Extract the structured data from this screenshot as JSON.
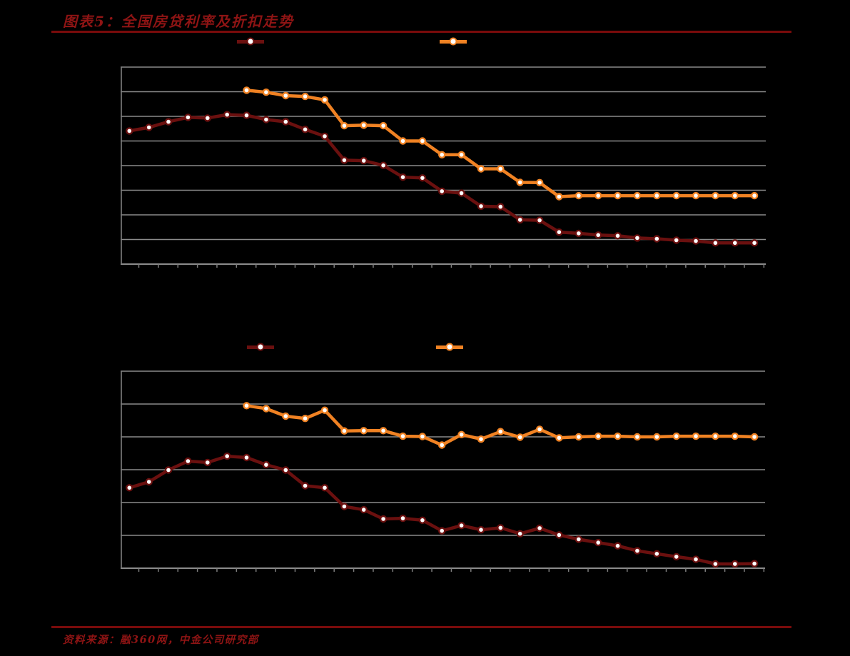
{
  "header": {
    "title": "图表5：全国房贷利率及折扣走势"
  },
  "footer": {
    "source": "资料来源：融360网，中金公司研究部"
  },
  "colors": {
    "accent_red": "#8E1414",
    "rule_red": "#7A0B0B",
    "series_dark_red": "#6B100F",
    "series_orange": "#F08223",
    "gridline_gray": "#8B8B8B",
    "axis_gray": "#7F7F7F",
    "marker_fill": "#FFFFFF",
    "background": "#000000"
  },
  "chart_data": [
    {
      "type": "line",
      "title": "",
      "xlabel": "",
      "ylabel": "",
      "x_count": 33,
      "ylim": [
        0,
        8
      ],
      "y_units": "gridline units (axis tick labels rendered black-on-black, not legible in source image)",
      "axis_labels_visible": false,
      "grid": true,
      "legend_position": "top",
      "series": [
        {
          "name": "dark-red-line-with-markers",
          "color_key": "series_dark_red",
          "start_index": 0,
          "values": [
            5.41,
            5.55,
            5.78,
            5.96,
            5.93,
            6.07,
            6.04,
            5.87,
            5.78,
            5.47,
            5.19,
            4.22,
            4.2,
            4.01,
            3.53,
            3.5,
            2.96,
            2.88,
            2.35,
            2.33,
            1.8,
            1.78,
            1.3,
            1.25,
            1.18,
            1.15,
            1.06,
            1.03,
            0.97,
            0.94,
            0.86,
            0.86,
            0.86
          ]
        },
        {
          "name": "orange-line-with-markers",
          "color_key": "series_orange",
          "start_index": 6,
          "values": [
            7.06,
            6.98,
            6.84,
            6.81,
            6.67,
            5.62,
            5.64,
            5.62,
            5.0,
            5.0,
            4.44,
            4.44,
            3.87,
            3.87,
            3.32,
            3.31,
            2.74,
            2.78,
            2.78,
            2.78,
            2.78,
            2.78,
            2.78,
            2.78,
            2.78,
            2.78,
            2.78
          ]
        }
      ]
    },
    {
      "type": "line",
      "title": "",
      "xlabel": "",
      "ylabel": "",
      "x_count": 33,
      "ylim": [
        0,
        6
      ],
      "y_units": "gridline units (axis tick labels rendered black-on-black, not legible in source image)",
      "axis_labels_visible": false,
      "grid": true,
      "legend_position": "top",
      "series": [
        {
          "name": "dark-red-line-with-markers",
          "color_key": "series_dark_red",
          "start_index": 0,
          "values": [
            2.45,
            2.63,
            2.99,
            3.26,
            3.22,
            3.41,
            3.37,
            3.15,
            2.99,
            2.51,
            2.45,
            1.88,
            1.78,
            1.5,
            1.52,
            1.46,
            1.14,
            1.3,
            1.17,
            1.23,
            1.05,
            1.22,
            1.01,
            0.88,
            0.78,
            0.68,
            0.53,
            0.44,
            0.35,
            0.27,
            0.13,
            0.13,
            0.14
          ]
        },
        {
          "name": "orange-line-with-markers",
          "color_key": "series_orange",
          "start_index": 6,
          "values": [
            4.95,
            4.86,
            4.63,
            4.56,
            4.81,
            4.18,
            4.19,
            4.19,
            4.02,
            4.01,
            3.75,
            4.07,
            3.93,
            4.16,
            3.99,
            4.23,
            3.97,
            4.0,
            4.02,
            4.02,
            4.0,
            4.0,
            4.02,
            4.02,
            4.02,
            4.02,
            4.0
          ]
        }
      ]
    }
  ]
}
